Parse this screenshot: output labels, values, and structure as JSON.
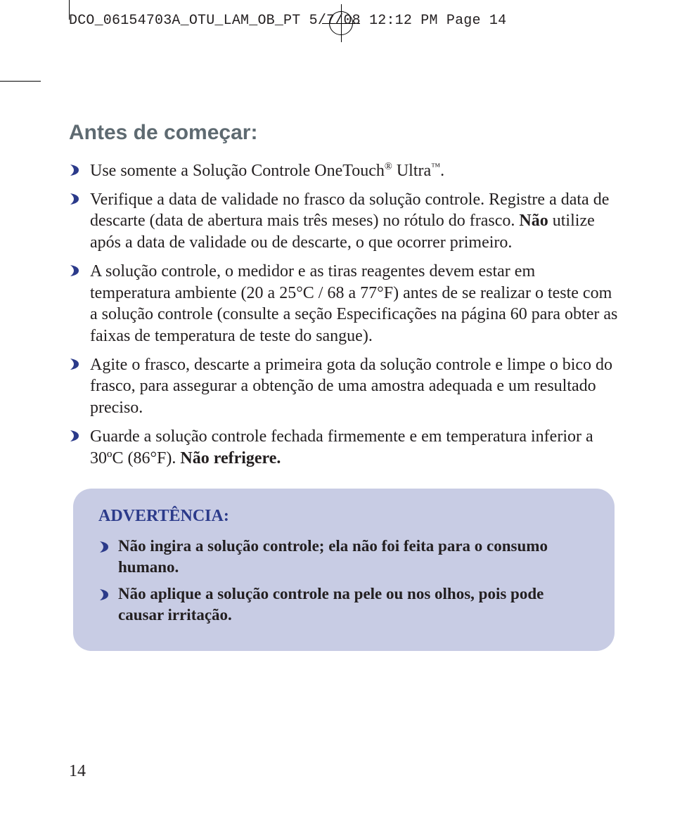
{
  "colors": {
    "text": "#231f20",
    "heading": "#5e6a71",
    "accent": "#2b3a8a",
    "warning_bg": "#c8cce4",
    "page_bg": "#ffffff",
    "crop": "#000000"
  },
  "typography": {
    "body_family": "Georgia, 'Times New Roman', serif",
    "heading_family": "Arial, Helvetica, sans-serif",
    "mono_family": "Courier New, monospace",
    "title_fontsize_pt": 22,
    "body_fontsize_pt": 18,
    "slug_fontsize_pt": 15
  },
  "slugline": "DCO_06154703A_OTU_LAM_OB_PT  5/7/08  12:12 PM  Page 14",
  "title": "Antes de começar:",
  "bullets": [
    "Use somente a Solução Controle OneTouch® Ultra™.",
    "Verifique a data de validade no frasco da solução controle. Registre a data de descarte (data de abertura mais três meses) no rótulo do frasco. Não utilize após a data de validade ou de descarte, o que ocorrer primeiro.",
    "A solução controle, o medidor e as tiras reagentes devem estar em temperatura ambiente (20 a 25°C / 68 a 77°F) antes de se realizar o teste com a solução controle (consulte a seção Especificações na página 60 para obter as faixas de temperatura de teste do sangue).",
    "Agite o frasco, descarte a primeira gota da solução controle e limpe o bico do frasco, para assegurar a obtenção de uma amostra adequada e um resultado preciso.",
    "Guarde a solução controle fechada firmemente e em temperatura inferior a 30ºC (86°F). Não refrigere."
  ],
  "bullet2_bold_fragment": "Não",
  "bullet5_bold_fragment": "Não refrigere.",
  "warning": {
    "title": "ADVERTÊNCIA:",
    "items": [
      "Não ingira a solução controle; ela não foi feita para o consumo humano.",
      "Não aplique a solução controle na pele ou nos olhos, pois pode causar irritação."
    ]
  },
  "page_number": "14"
}
